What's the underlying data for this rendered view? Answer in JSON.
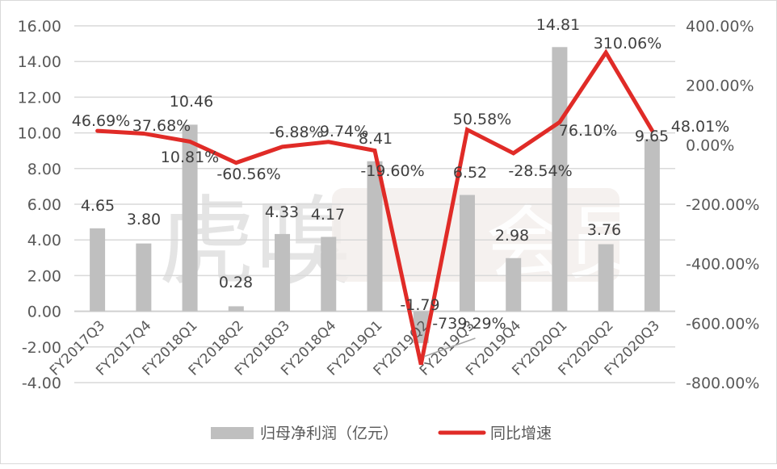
{
  "chart_data": {
    "type": "bar+line",
    "title": "",
    "categories": [
      "FY2017Q3",
      "FY2017Q4",
      "FY2018Q1",
      "FY2018Q2",
      "FY2018Q3",
      "FY2018Q4",
      "FY2019Q1",
      "FY2019Q2",
      "FY2019Q3",
      "FY2019Q4",
      "FY2020Q1",
      "FY2020Q2",
      "FY2020Q3"
    ],
    "series": [
      {
        "name": "归母净利润（亿元）",
        "type": "bar",
        "axis": "left",
        "color": "#bfbfbf",
        "values": [
          4.65,
          3.8,
          10.46,
          0.28,
          4.33,
          4.17,
          8.41,
          -1.79,
          6.52,
          2.98,
          14.81,
          3.76,
          9.65
        ],
        "labels": [
          "4.65",
          "3.80",
          "10.46",
          "0.28",
          "4.33",
          "4.17",
          "8.41",
          "-1.79",
          "6.52",
          "2.98",
          "14.81",
          "3.76",
          "9.65"
        ]
      },
      {
        "name": "同比增速",
        "type": "line",
        "axis": "right",
        "color": "#e02b27",
        "values": [
          46.69,
          37.68,
          10.81,
          -60.56,
          -6.88,
          9.74,
          -19.6,
          -739.29,
          50.58,
          -28.54,
          76.1,
          310.06,
          48.01
        ],
        "labels": [
          "46.69%",
          "37.68%",
          "10.81%",
          "-60.56%",
          "-6.88%",
          "9.74%",
          "-19.60%",
          "-739.29%",
          "50.58%",
          "-28.54%",
          "76.10%",
          "310.06%",
          "48.01%"
        ]
      }
    ],
    "left_axis": {
      "ylim": [
        -4,
        16
      ],
      "ticks": [
        "16.00",
        "14.00",
        "12.00",
        "10.00",
        "8.00",
        "6.00",
        "4.00",
        "2.00",
        "0.00",
        "-2.00",
        "-4.00"
      ]
    },
    "right_axis": {
      "ylim": [
        -800,
        400
      ],
      "ticks": [
        "400.00%",
        "200.00%",
        "0.00%",
        "-200.00%",
        "-400.00%",
        "-600.00%",
        "-800.00%"
      ]
    },
    "xlabel": "",
    "ylabel": "",
    "grid": true,
    "legend_position": "bottom"
  },
  "legend": {
    "bar_label": "归母净利润（亿元）",
    "line_label": "同比增速"
  },
  "watermark": {
    "text": "虎嗅",
    "badge_text": "会员"
  }
}
